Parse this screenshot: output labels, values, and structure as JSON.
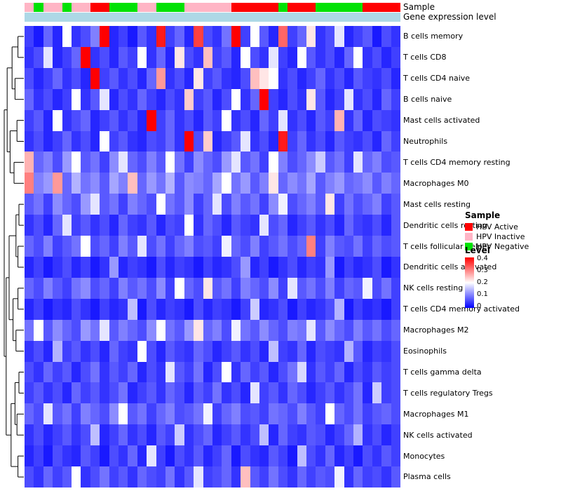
{
  "annotations": {
    "sample_label": "Sample",
    "gene_label": "Gene expression level",
    "gene_color": "#ADD8E6",
    "sample_colors": {
      "HPV Active": "#FF0000",
      "HPV Inactive": "#FFB5C5",
      "HPV Negative": "#00E205"
    },
    "sample_values": [
      "HPV Inactive",
      "HPV Negative",
      "HPV Inactive",
      "HPV Inactive",
      "HPV Negative",
      "HPV Inactive",
      "HPV Inactive",
      "HPV Active",
      "HPV Active",
      "HPV Negative",
      "HPV Negative",
      "HPV Negative",
      "HPV Inactive",
      "HPV Inactive",
      "HPV Negative",
      "HPV Negative",
      "HPV Negative",
      "HPV Inactive",
      "HPV Inactive",
      "HPV Inactive",
      "HPV Inactive",
      "HPV Inactive",
      "HPV Active",
      "HPV Active",
      "HPV Active",
      "HPV Active",
      "HPV Active",
      "HPV Negative",
      "HPV Active",
      "HPV Active",
      "HPV Active",
      "HPV Negative",
      "HPV Negative",
      "HPV Negative",
      "HPV Negative",
      "HPV Negative",
      "HPV Active",
      "HPV Active",
      "HPV Active",
      "HPV Active"
    ]
  },
  "legend": {
    "sample": {
      "title": "Sample",
      "items": [
        {
          "label": "HPV Active",
          "color": "#FF0000"
        },
        {
          "label": "HPV Inactive",
          "color": "#FFB5C5"
        },
        {
          "label": "HPV Negative",
          "color": "#00E205"
        }
      ]
    },
    "level": {
      "title": "Level",
      "ticks": [
        "0.4",
        "0.3",
        "0.2",
        "0.1",
        "0"
      ],
      "min": 0,
      "max": 0.4,
      "colors": [
        "#0000FF",
        "#FFFFFF",
        "#FF0000"
      ]
    }
  },
  "chart_data": {
    "type": "heatmap",
    "rows": [
      "B cells memory",
      "T cells CD8",
      "T cells CD4 naive",
      "B cells naive",
      "Mast cells activated",
      "Neutrophils",
      "T cells CD4 memory resting",
      "Macrophages M0",
      "Mast cells resting",
      "Dendritic cells resting",
      "T cells follicular helper",
      "Dendritic cells activated",
      "NK cells resting",
      "T cells CD4 memory activated",
      "Macrophages M2",
      "Eosinophils",
      "T cells gamma delta",
      "T cells regulatory Tregs",
      "Macrophages M1",
      "NK cells activated",
      "Monocytes",
      "Plasma cells"
    ],
    "n_columns": 40,
    "value_range": [
      0,
      0.4
    ],
    "colormap": "blue-white-red",
    "values": [
      [
        0.05,
        0.02,
        0.08,
        0.03,
        0.2,
        0.04,
        0.06,
        0.1,
        0.4,
        0.03,
        0.05,
        0.02,
        0.07,
        0.04,
        0.38,
        0.05,
        0.08,
        0.03,
        0.35,
        0.06,
        0.04,
        0.09,
        0.4,
        0.05,
        0.2,
        0.07,
        0.03,
        0.32,
        0.05,
        0.08,
        0.22,
        0.04,
        0.06,
        0.18,
        0.03,
        0.05,
        0.07,
        0.02,
        0.06,
        0.04
      ],
      [
        0.04,
        0.06,
        0.18,
        0.03,
        0.05,
        0.08,
        0.4,
        0.04,
        0.06,
        0.03,
        0.07,
        0.05,
        0.2,
        0.04,
        0.08,
        0.03,
        0.22,
        0.06,
        0.04,
        0.25,
        0.05,
        0.07,
        0.03,
        0.2,
        0.06,
        0.04,
        0.18,
        0.05,
        0.03,
        0.2,
        0.07,
        0.04,
        0.06,
        0.03,
        0.08,
        0.2,
        0.04,
        0.06,
        0.03,
        0.05
      ],
      [
        0.06,
        0.03,
        0.05,
        0.08,
        0.04,
        0.06,
        0.03,
        0.4,
        0.05,
        0.07,
        0.04,
        0.06,
        0.03,
        0.08,
        0.28,
        0.04,
        0.06,
        0.03,
        0.22,
        0.05,
        0.07,
        0.04,
        0.03,
        0.06,
        0.25,
        0.22,
        0.2,
        0.04,
        0.06,
        0.03,
        0.05,
        0.08,
        0.04,
        0.06,
        0.03,
        0.07,
        0.05,
        0.04,
        0.06,
        0.03
      ],
      [
        0.08,
        0.04,
        0.06,
        0.03,
        0.05,
        0.2,
        0.04,
        0.07,
        0.18,
        0.03,
        0.06,
        0.04,
        0.08,
        0.05,
        0.03,
        0.06,
        0.04,
        0.24,
        0.05,
        0.07,
        0.03,
        0.06,
        0.2,
        0.04,
        0.08,
        0.4,
        0.05,
        0.03,
        0.06,
        0.04,
        0.22,
        0.07,
        0.03,
        0.05,
        0.18,
        0.04,
        0.06,
        0.03,
        0.08,
        0.05
      ],
      [
        0.05,
        0.07,
        0.03,
        0.2,
        0.04,
        0.06,
        0.08,
        0.03,
        0.05,
        0.07,
        0.04,
        0.06,
        0.03,
        0.4,
        0.05,
        0.08,
        0.04,
        0.06,
        0.03,
        0.07,
        0.05,
        0.2,
        0.04,
        0.06,
        0.03,
        0.08,
        0.05,
        0.18,
        0.04,
        0.06,
        0.03,
        0.07,
        0.05,
        0.26,
        0.04,
        0.08,
        0.03,
        0.06,
        0.05,
        0.04
      ],
      [
        0.04,
        0.06,
        0.03,
        0.05,
        0.08,
        0.04,
        0.06,
        0.03,
        0.2,
        0.05,
        0.07,
        0.04,
        0.03,
        0.06,
        0.05,
        0.08,
        0.04,
        0.4,
        0.06,
        0.24,
        0.03,
        0.05,
        0.07,
        0.18,
        0.04,
        0.06,
        0.03,
        0.38,
        0.05,
        0.08,
        0.04,
        0.06,
        0.03,
        0.07,
        0.05,
        0.04,
        0.06,
        0.03,
        0.08,
        0.05
      ],
      [
        0.26,
        0.08,
        0.1,
        0.06,
        0.12,
        0.2,
        0.07,
        0.09,
        0.05,
        0.11,
        0.18,
        0.08,
        0.06,
        0.1,
        0.07,
        0.2,
        0.09,
        0.05,
        0.11,
        0.08,
        0.06,
        0.12,
        0.18,
        0.07,
        0.09,
        0.05,
        0.2,
        0.1,
        0.06,
        0.08,
        0.11,
        0.16,
        0.07,
        0.09,
        0.05,
        0.18,
        0.08,
        0.1,
        0.06,
        0.07
      ],
      [
        0.3,
        0.1,
        0.12,
        0.28,
        0.08,
        0.14,
        0.09,
        0.11,
        0.07,
        0.13,
        0.1,
        0.25,
        0.08,
        0.12,
        0.09,
        0.14,
        0.07,
        0.11,
        0.1,
        0.08,
        0.13,
        0.2,
        0.09,
        0.12,
        0.07,
        0.1,
        0.22,
        0.08,
        0.11,
        0.09,
        0.13,
        0.07,
        0.1,
        0.12,
        0.08,
        0.09,
        0.11,
        0.07,
        0.1,
        0.08
      ],
      [
        0.07,
        0.09,
        0.05,
        0.11,
        0.08,
        0.06,
        0.12,
        0.18,
        0.07,
        0.09,
        0.05,
        0.1,
        0.08,
        0.06,
        0.2,
        0.09,
        0.07,
        0.11,
        0.05,
        0.08,
        0.18,
        0.06,
        0.1,
        0.07,
        0.09,
        0.05,
        0.11,
        0.19,
        0.06,
        0.08,
        0.1,
        0.07,
        0.22,
        0.05,
        0.09,
        0.06,
        0.08,
        0.1,
        0.05,
        0.07
      ],
      [
        0.04,
        0.06,
        0.03,
        0.08,
        0.18,
        0.05,
        0.07,
        0.04,
        0.06,
        0.03,
        0.08,
        0.05,
        0.04,
        0.07,
        0.03,
        0.06,
        0.05,
        0.2,
        0.04,
        0.08,
        0.06,
        0.03,
        0.07,
        0.05,
        0.04,
        0.18,
        0.06,
        0.08,
        0.03,
        0.05,
        0.07,
        0.04,
        0.06,
        0.03,
        0.08,
        0.05,
        0.04,
        0.06,
        0.03,
        0.07
      ],
      [
        0.08,
        0.06,
        0.1,
        0.05,
        0.07,
        0.09,
        0.2,
        0.06,
        0.08,
        0.05,
        0.1,
        0.07,
        0.18,
        0.06,
        0.09,
        0.05,
        0.08,
        0.1,
        0.06,
        0.07,
        0.05,
        0.19,
        0.08,
        0.06,
        0.1,
        0.05,
        0.07,
        0.09,
        0.06,
        0.08,
        0.3,
        0.05,
        0.1,
        0.07,
        0.06,
        0.09,
        0.05,
        0.08,
        0.06,
        0.07
      ],
      [
        0.03,
        0.05,
        0.02,
        0.04,
        0.06,
        0.03,
        0.05,
        0.02,
        0.04,
        0.12,
        0.03,
        0.05,
        0.04,
        0.02,
        0.06,
        0.03,
        0.05,
        0.04,
        0.02,
        0.05,
        0.03,
        0.04,
        0.06,
        0.12,
        0.03,
        0.05,
        0.02,
        0.04,
        0.06,
        0.03,
        0.05,
        0.04,
        0.12,
        0.02,
        0.05,
        0.03,
        0.04,
        0.06,
        0.02,
        0.04
      ],
      [
        0.08,
        0.06,
        0.1,
        0.07,
        0.05,
        0.09,
        0.11,
        0.06,
        0.08,
        0.05,
        0.1,
        0.07,
        0.09,
        0.06,
        0.11,
        0.05,
        0.2,
        0.08,
        0.06,
        0.22,
        0.07,
        0.09,
        0.05,
        0.1,
        0.08,
        0.06,
        0.11,
        0.05,
        0.18,
        0.07,
        0.09,
        0.06,
        0.1,
        0.05,
        0.08,
        0.07,
        0.19,
        0.06,
        0.09,
        0.05
      ],
      [
        0.03,
        0.05,
        0.02,
        0.04,
        0.03,
        0.06,
        0.04,
        0.02,
        0.05,
        0.03,
        0.04,
        0.15,
        0.02,
        0.06,
        0.03,
        0.05,
        0.04,
        0.02,
        0.06,
        0.03,
        0.05,
        0.04,
        0.02,
        0.05,
        0.16,
        0.03,
        0.04,
        0.06,
        0.02,
        0.05,
        0.03,
        0.04,
        0.06,
        0.14,
        0.02,
        0.05,
        0.03,
        0.04,
        0.02,
        0.05
      ],
      [
        0.09,
        0.2,
        0.07,
        0.11,
        0.08,
        0.06,
        0.12,
        0.09,
        0.18,
        0.07,
        0.1,
        0.08,
        0.06,
        0.11,
        0.2,
        0.09,
        0.07,
        0.12,
        0.22,
        0.08,
        0.1,
        0.06,
        0.19,
        0.09,
        0.07,
        0.11,
        0.08,
        0.06,
        0.1,
        0.09,
        0.18,
        0.07,
        0.11,
        0.08,
        0.06,
        0.1,
        0.07,
        0.09,
        0.06,
        0.08
      ],
      [
        0.04,
        0.06,
        0.03,
        0.14,
        0.05,
        0.07,
        0.04,
        0.06,
        0.03,
        0.08,
        0.05,
        0.04,
        0.2,
        0.06,
        0.03,
        0.07,
        0.05,
        0.04,
        0.08,
        0.06,
        0.03,
        0.05,
        0.07,
        0.04,
        0.06,
        0.03,
        0.15,
        0.05,
        0.04,
        0.08,
        0.03,
        0.06,
        0.05,
        0.04,
        0.14,
        0.07,
        0.03,
        0.05,
        0.04,
        0.06
      ],
      [
        0.06,
        0.04,
        0.08,
        0.05,
        0.07,
        0.03,
        0.06,
        0.09,
        0.04,
        0.07,
        0.05,
        0.08,
        0.03,
        0.06,
        0.04,
        0.18,
        0.07,
        0.05,
        0.09,
        0.03,
        0.06,
        0.2,
        0.04,
        0.08,
        0.05,
        0.07,
        0.03,
        0.06,
        0.09,
        0.17,
        0.04,
        0.07,
        0.05,
        0.08,
        0.03,
        0.06,
        0.04,
        0.07,
        0.05,
        0.06
      ],
      [
        0.05,
        0.07,
        0.04,
        0.06,
        0.03,
        0.08,
        0.05,
        0.07,
        0.04,
        0.06,
        0.09,
        0.03,
        0.05,
        0.07,
        0.04,
        0.08,
        0.06,
        0.03,
        0.07,
        0.05,
        0.09,
        0.04,
        0.06,
        0.03,
        0.18,
        0.05,
        0.07,
        0.04,
        0.08,
        0.06,
        0.03,
        0.05,
        0.07,
        0.04,
        0.06,
        0.09,
        0.03,
        0.16,
        0.05,
        0.06
      ],
      [
        0.08,
        0.06,
        0.18,
        0.07,
        0.09,
        0.05,
        0.1,
        0.08,
        0.06,
        0.11,
        0.2,
        0.07,
        0.09,
        0.05,
        0.08,
        0.1,
        0.06,
        0.07,
        0.09,
        0.19,
        0.05,
        0.08,
        0.1,
        0.06,
        0.07,
        0.05,
        0.09,
        0.08,
        0.06,
        0.1,
        0.07,
        0.05,
        0.2,
        0.08,
        0.06,
        0.09,
        0.05,
        0.07,
        0.08,
        0.06
      ],
      [
        0.04,
        0.06,
        0.03,
        0.05,
        0.07,
        0.04,
        0.06,
        0.15,
        0.03,
        0.05,
        0.08,
        0.04,
        0.06,
        0.03,
        0.07,
        0.05,
        0.16,
        0.04,
        0.06,
        0.08,
        0.03,
        0.05,
        0.07,
        0.04,
        0.06,
        0.15,
        0.03,
        0.08,
        0.05,
        0.04,
        0.07,
        0.06,
        0.03,
        0.05,
        0.08,
        0.14,
        0.04,
        0.06,
        0.03,
        0.05
      ],
      [
        0.03,
        0.05,
        0.02,
        0.06,
        0.04,
        0.03,
        0.07,
        0.05,
        0.02,
        0.06,
        0.04,
        0.08,
        0.03,
        0.18,
        0.05,
        0.02,
        0.06,
        0.04,
        0.07,
        0.03,
        0.05,
        0.08,
        0.02,
        0.06,
        0.04,
        0.03,
        0.07,
        0.05,
        0.02,
        0.15,
        0.06,
        0.04,
        0.08,
        0.03,
        0.05,
        0.02,
        0.06,
        0.04,
        0.07,
        0.05
      ],
      [
        0.06,
        0.04,
        0.08,
        0.05,
        0.07,
        0.2,
        0.04,
        0.06,
        0.09,
        0.05,
        0.07,
        0.04,
        0.08,
        0.06,
        0.05,
        0.09,
        0.04,
        0.07,
        0.18,
        0.05,
        0.06,
        0.08,
        0.04,
        0.25,
        0.07,
        0.05,
        0.09,
        0.06,
        0.04,
        0.08,
        0.05,
        0.07,
        0.06,
        0.19,
        0.04,
        0.08,
        0.05,
        0.06,
        0.04,
        0.07
      ]
    ]
  }
}
